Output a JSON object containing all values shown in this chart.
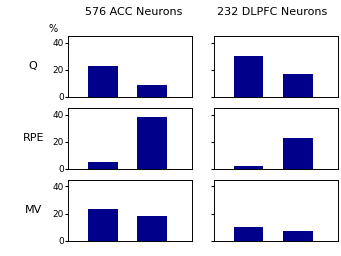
{
  "title_left": "576 ACC Neurons",
  "title_right": "232 DLPFC Neurons",
  "row_labels": [
    "Q",
    "RPE",
    "MV"
  ],
  "percent_label": "%",
  "bar_color": "#00008B",
  "ylim": [
    0,
    45
  ],
  "yticks": [
    0,
    20,
    40
  ],
  "yticklabels": [
    "0",
    "20",
    "40"
  ],
  "acc_values": [
    [
      23,
      9
    ],
    [
      5,
      38
    ],
    [
      23,
      18
    ]
  ],
  "dlpfc_values": [
    [
      30,
      17
    ],
    [
      2,
      23
    ],
    [
      10,
      7
    ]
  ],
  "bar_width": 0.6,
  "title_fontsize": 8,
  "label_fontsize": 8,
  "tick_fontsize": 6.5
}
